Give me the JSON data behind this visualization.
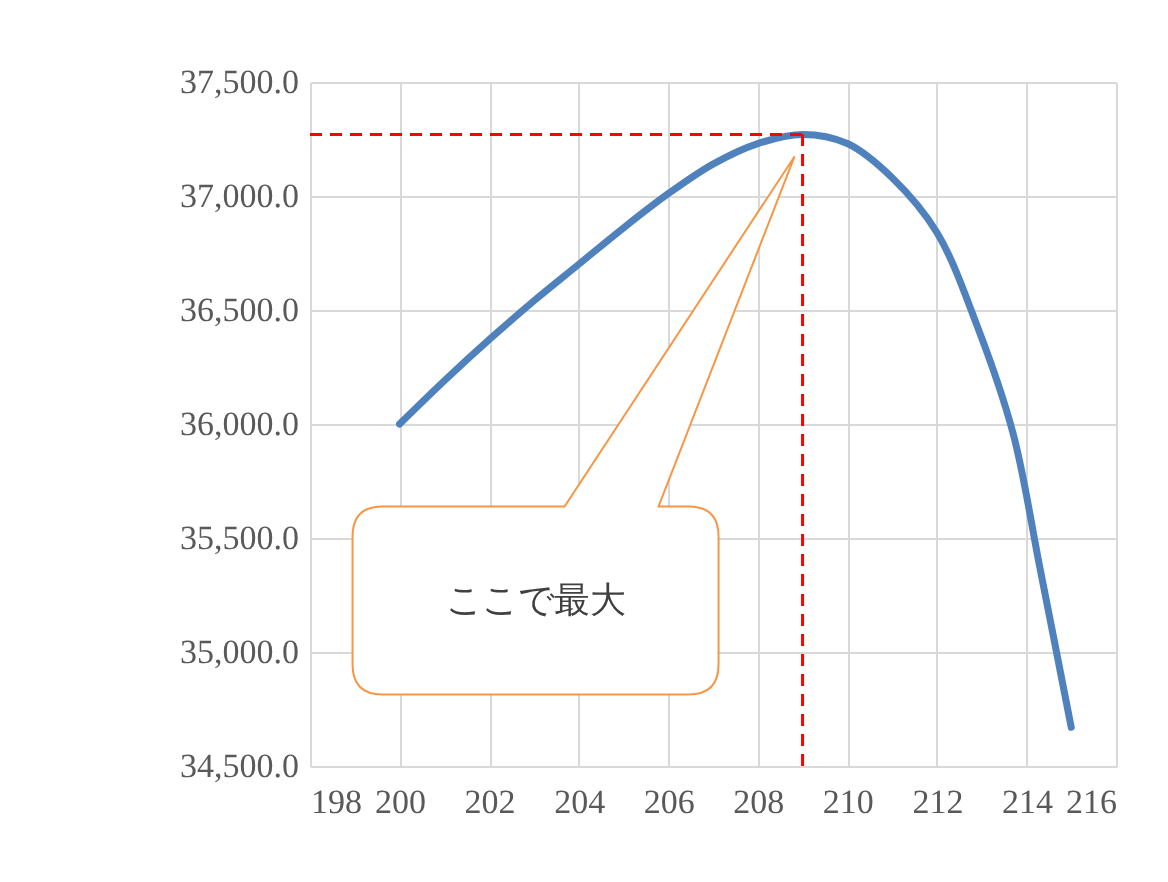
{
  "chart_data": {
    "type": "line",
    "x": [
      200,
      201,
      202,
      203,
      204,
      205,
      206,
      207,
      208,
      209,
      210,
      211,
      212,
      212.9,
      213.7,
      214.3,
      215
    ],
    "series": [
      {
        "color": "#4f81bd",
        "values": [
          36000,
          36190,
          36370,
          36540,
          36700,
          36860,
          37010,
          37140,
          37230,
          37270,
          37230,
          37080,
          36840,
          36430,
          35960,
          35370,
          34670
        ]
      }
    ],
    "xlim": [
      198,
      216
    ],
    "xticks": [
      198,
      200,
      202,
      204,
      206,
      208,
      210,
      212,
      214,
      216
    ],
    "ylim": [
      34500,
      37500
    ],
    "yticks": [
      {
        "value": 34500,
        "label": "34,500.0"
      },
      {
        "value": 35000,
        "label": "35,000.0"
      },
      {
        "value": 35500,
        "label": "35,500.0"
      },
      {
        "value": 36000,
        "label": "36,000.0"
      },
      {
        "value": 36500,
        "label": "36,500.0"
      },
      {
        "value": 37000,
        "label": "37,000.0"
      },
      {
        "value": 37500,
        "label": "37,500.0"
      }
    ],
    "grid": true,
    "ref_lines": [
      {
        "axis": "y",
        "value": 37270,
        "color": "#ff0000",
        "line_style": "dashed"
      },
      {
        "axis": "x",
        "value": 209,
        "color": "#ff0000",
        "line_style": "dashed"
      }
    ],
    "annotations": [
      "ここで最大"
    ]
  }
}
